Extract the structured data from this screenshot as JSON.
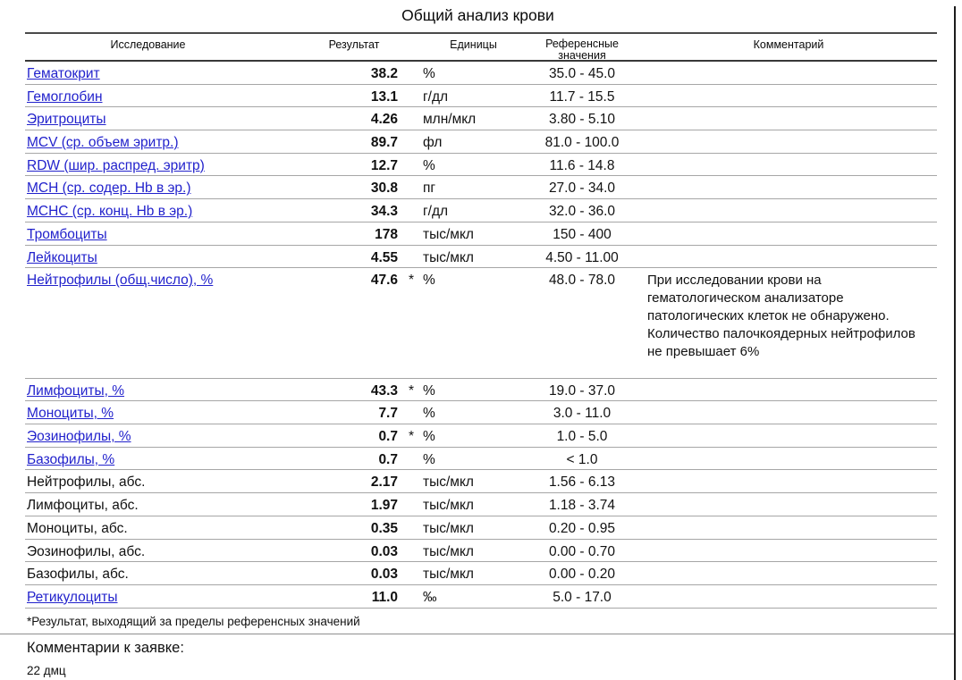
{
  "report": {
    "title": "Общий анализ крови",
    "header": {
      "col_test": "Исследование",
      "col_result": "Результат",
      "col_units": "Единицы",
      "col_reference": "Референсные значения",
      "col_comment": "Комментарий"
    },
    "flag_marker": "*",
    "rows": [
      {
        "name": "Гематокрит",
        "link": true,
        "result": "38.2",
        "flagged": false,
        "units": "%",
        "reference": "35.0 - 45.0",
        "comment": ""
      },
      {
        "name": "Гемоглобин",
        "link": true,
        "result": "13.1",
        "flagged": false,
        "units": "г/дл",
        "reference": "11.7 - 15.5",
        "comment": ""
      },
      {
        "name": "Эритроциты",
        "link": true,
        "result": "4.26",
        "flagged": false,
        "units": "млн/мкл",
        "reference": "3.80 - 5.10",
        "comment": ""
      },
      {
        "name": "MCV (ср. объем эритр.)",
        "link": true,
        "result": "89.7",
        "flagged": false,
        "units": "фл",
        "reference": "81.0 - 100.0",
        "comment": ""
      },
      {
        "name": "RDW (шир. распред. эритр)",
        "link": true,
        "result": "12.7",
        "flagged": false,
        "units": "%",
        "reference": "11.6 - 14.8",
        "comment": ""
      },
      {
        "name": "MCH (ср. содер. Hb в эр.)",
        "link": true,
        "result": "30.8",
        "flagged": false,
        "units": "пг",
        "reference": "27.0 - 34.0",
        "comment": ""
      },
      {
        "name": "MCHC (ср. конц. Hb в эр.)",
        "link": true,
        "result": "34.3",
        "flagged": false,
        "units": "г/дл",
        "reference": "32.0 - 36.0",
        "comment": ""
      },
      {
        "name": "Тромбоциты",
        "link": true,
        "result": "178",
        "flagged": false,
        "units": "тыс/мкл",
        "reference": "150 - 400",
        "comment": ""
      },
      {
        "name": "Лейкоциты",
        "link": true,
        "result": "4.55",
        "flagged": false,
        "units": "тыс/мкл",
        "reference": "4.50 - 11.00",
        "comment": ""
      },
      {
        "name": "Нейтрофилы (общ.число), %",
        "link": true,
        "result": "47.6",
        "flagged": true,
        "units": "%",
        "reference": "48.0 - 78.0",
        "comment": "При исследовании крови на гематологическом анализаторе патологических клеток не обнаружено. Количество палочкоядерных нейтрофилов не превышает 6%"
      },
      {
        "name": "Лимфоциты, %",
        "link": true,
        "result": "43.3",
        "flagged": true,
        "units": "%",
        "reference": "19.0 - 37.0",
        "comment": ""
      },
      {
        "name": "Моноциты, %",
        "link": true,
        "result": "7.7",
        "flagged": false,
        "units": "%",
        "reference": "3.0 - 11.0",
        "comment": ""
      },
      {
        "name": "Эозинофилы, %",
        "link": true,
        "result": "0.7",
        "flagged": true,
        "units": "%",
        "reference": "1.0 - 5.0",
        "comment": ""
      },
      {
        "name": "Базофилы, %",
        "link": true,
        "result": "0.7",
        "flagged": false,
        "units": "%",
        "reference": "< 1.0",
        "comment": ""
      },
      {
        "name": "Нейтрофилы, абс.",
        "link": false,
        "result": "2.17",
        "flagged": false,
        "units": "тыс/мкл",
        "reference": "1.56 - 6.13",
        "comment": ""
      },
      {
        "name": "Лимфоциты, абс.",
        "link": false,
        "result": "1.97",
        "flagged": false,
        "units": "тыс/мкл",
        "reference": "1.18 - 3.74",
        "comment": ""
      },
      {
        "name": "Моноциты, абс.",
        "link": false,
        "result": "0.35",
        "flagged": false,
        "units": "тыс/мкл",
        "reference": "0.20 - 0.95",
        "comment": ""
      },
      {
        "name": "Эозинофилы, абс.",
        "link": false,
        "result": "0.03",
        "flagged": false,
        "units": "тыс/мкл",
        "reference": "0.00 - 0.70",
        "comment": ""
      },
      {
        "name": "Базофилы, абс.",
        "link": false,
        "result": "0.03",
        "flagged": false,
        "units": "тыс/мкл",
        "reference": "0.00 - 0.20",
        "comment": ""
      },
      {
        "name": "Ретикулоциты",
        "link": true,
        "result": "11.0",
        "flagged": false,
        "units": "‰",
        "reference": "5.0 - 17.0",
        "comment": ""
      }
    ],
    "footnote": "*Результат, выходящий за пределы референсных значений",
    "request_comments_label": "Комментарии к заявке:",
    "request_comments_value": "22 дмц",
    "colors": {
      "link_blue": "#2222cc",
      "row_divider": "#a6a6a6",
      "header_rule": "#383838"
    }
  }
}
